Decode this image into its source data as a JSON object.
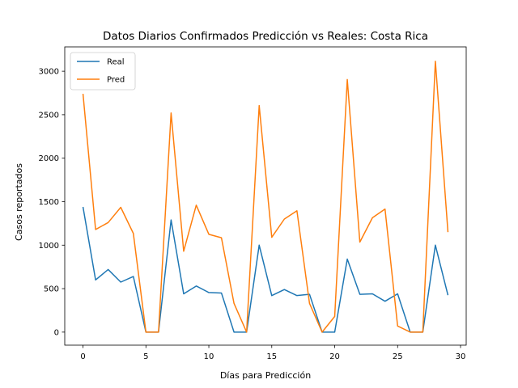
{
  "chart_data": {
    "type": "line",
    "title": "Datos Diarios Confirmados Predicción vs Reales: Costa Rica",
    "xlabel": "Días para Predicción",
    "ylabel": "Casos reportados",
    "xlim": [
      -1.45,
      30.45
    ],
    "ylim": [
      -150,
      3280
    ],
    "xticks": [
      0,
      5,
      10,
      15,
      20,
      25,
      30
    ],
    "yticks": [
      0,
      500,
      1000,
      1500,
      2000,
      2500,
      3000
    ],
    "grid": false,
    "legend_position": "top-left",
    "x": [
      0,
      1,
      2,
      3,
      4,
      5,
      6,
      7,
      8,
      9,
      10,
      11,
      12,
      13,
      14,
      15,
      16,
      17,
      18,
      19,
      20,
      21,
      22,
      23,
      24,
      25,
      26,
      27,
      28,
      29
    ],
    "series": [
      {
        "name": "Real",
        "color": "#1f77b4",
        "values": [
          1440,
          600,
          720,
          575,
          640,
          0,
          0,
          1290,
          440,
          530,
          455,
          450,
          0,
          0,
          1000,
          420,
          490,
          420,
          435,
          0,
          0,
          840,
          435,
          440,
          355,
          440,
          0,
          0,
          1000,
          425
        ]
      },
      {
        "name": "Pred",
        "color": "#ff7f0e",
        "values": [
          2740,
          1180,
          1260,
          1435,
          1135,
          0,
          0,
          2520,
          930,
          1460,
          1125,
          1085,
          330,
          0,
          2605,
          1090,
          1300,
          1395,
          330,
          0,
          180,
          2905,
          1035,
          1315,
          1415,
          70,
          0,
          0,
          3115,
          1150
        ]
      }
    ]
  }
}
